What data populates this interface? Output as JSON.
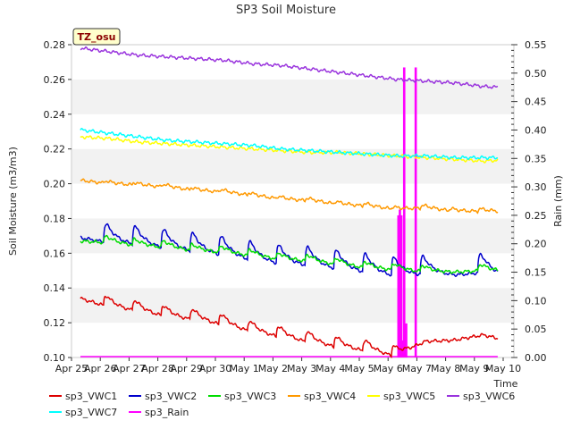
{
  "chart_data": {
    "type": "line",
    "title": "SP3 Soil Moisture",
    "badge": "TZ_osu",
    "xlabel": "Time",
    "ylabel": "Soil Moisture (m3/m3)",
    "y2label": "Rain (mm)",
    "ylim": [
      0.1,
      0.28
    ],
    "y2lim": [
      0.0,
      0.55
    ],
    "xlim": [
      0,
      15
    ],
    "x_tick_labels": [
      "Apr 25",
      "Apr 26",
      "Apr 27",
      "Apr 28",
      "Apr 29",
      "Apr 30",
      "May 1",
      "May 2",
      "May 3",
      "May 4",
      "May 5",
      "May 6",
      "May 7",
      "May 8",
      "May 9",
      "May 10"
    ],
    "y_tick_labels": [
      "0.10",
      "0.12",
      "0.14",
      "0.16",
      "0.18",
      "0.20",
      "0.22",
      "0.24",
      "0.26",
      "0.28"
    ],
    "y2_tick_labels": [
      "0.00",
      "0.05",
      "0.10",
      "0.15",
      "0.20",
      "0.25",
      "0.30",
      "0.35",
      "0.40",
      "0.45",
      "0.50",
      "0.55"
    ],
    "grid": "horizontal bands",
    "legend": "bottom",
    "series": [
      {
        "name": "sp3_VWC1",
        "color": "#dd0000",
        "type": "line",
        "base": [
          0.134,
          0.129,
          0.126,
          0.123,
          0.121,
          0.118,
          0.114,
          0.111,
          0.108,
          0.105,
          0.103,
          0.1,
          0.109,
          0.11,
          0.113,
          0.109
        ],
        "amp": 0.0085,
        "peak_times": [
          0.8,
          1.8,
          2.8,
          3.8,
          4.8,
          5.8,
          6.8,
          7.8,
          8.8,
          9.8,
          10.8
        ]
      },
      {
        "name": "sp3_VWC2",
        "color": "#0000cc",
        "type": "line",
        "base": [
          0.169,
          0.166,
          0.164,
          0.162,
          0.16,
          0.158,
          0.155,
          0.153,
          0.152,
          0.15,
          0.148,
          0.146,
          0.147,
          0.147,
          0.149,
          0.145
        ],
        "amp": 0.0145,
        "peak_times": [
          0.8,
          1.8,
          2.8,
          3.8,
          4.8,
          5.8,
          6.8,
          7.8,
          8.8,
          9.8,
          10.8,
          11.8,
          13.8
        ]
      },
      {
        "name": "sp3_VWC3",
        "color": "#00dd00",
        "type": "line",
        "base": [
          0.167,
          0.166,
          0.164,
          0.163,
          0.161,
          0.16,
          0.158,
          0.156,
          0.155,
          0.153,
          0.151,
          0.15,
          0.149,
          0.149,
          0.15,
          0.149
        ],
        "amp": 0.005,
        "peak_times": [
          0.8,
          1.8,
          2.8,
          3.8,
          4.8,
          5.8,
          6.8,
          7.8,
          8.8,
          9.8,
          10.8,
          11.8,
          13.8
        ]
      },
      {
        "name": "sp3_VWC4",
        "color": "#ff9900",
        "type": "line",
        "base": [
          0.202,
          0.2,
          0.199,
          0.198,
          0.196,
          0.195,
          0.193,
          0.191,
          0.19,
          0.188,
          0.187,
          0.185,
          0.186,
          0.184,
          0.184,
          0.184
        ],
        "amp": 0.002,
        "peak_times": [
          0.8,
          1.8,
          2.8,
          3.8,
          4.8,
          5.8,
          6.8,
          7.8,
          8.8,
          9.8,
          10.8,
          11.8,
          12.8,
          13.8
        ]
      },
      {
        "name": "sp3_VWC5",
        "color": "#ffff00",
        "type": "line",
        "base": [
          0.227,
          0.226,
          0.224,
          0.223,
          0.222,
          0.221,
          0.22,
          0.219,
          0.218,
          0.218,
          0.217,
          0.216,
          0.215,
          0.214,
          0.213,
          0.214
        ],
        "amp": 0.001,
        "peak_times": []
      },
      {
        "name": "sp3_VWC6",
        "color": "#9933dd",
        "type": "line",
        "base": [
          0.278,
          0.276,
          0.274,
          0.273,
          0.272,
          0.271,
          0.269,
          0.268,
          0.266,
          0.264,
          0.262,
          0.26,
          0.259,
          0.258,
          0.256,
          0.255
        ],
        "amp": 0.0,
        "peak_times": []
      },
      {
        "name": "sp3_VWC7",
        "color": "#00ffff",
        "type": "line",
        "base": [
          0.231,
          0.229,
          0.227,
          0.225,
          0.224,
          0.223,
          0.222,
          0.22,
          0.219,
          0.218,
          0.217,
          0.216,
          0.216,
          0.215,
          0.215,
          0.215
        ],
        "amp": 0.0,
        "peak_times": []
      },
      {
        "name": "sp3_Rain",
        "color": "#ff00ff",
        "type": "bar",
        "axis": "y2",
        "events": [
          {
            "x": 11.05,
            "value": 0.25
          },
          {
            "x": 11.1,
            "value": 0.26
          },
          {
            "x": 11.15,
            "value": 0.25
          },
          {
            "x": 11.2,
            "value": 0.03
          },
          {
            "x": 11.25,
            "value": 0.51
          },
          {
            "x": 11.32,
            "value": 0.06
          },
          {
            "x": 11.65,
            "value": 0.51
          }
        ]
      }
    ]
  }
}
